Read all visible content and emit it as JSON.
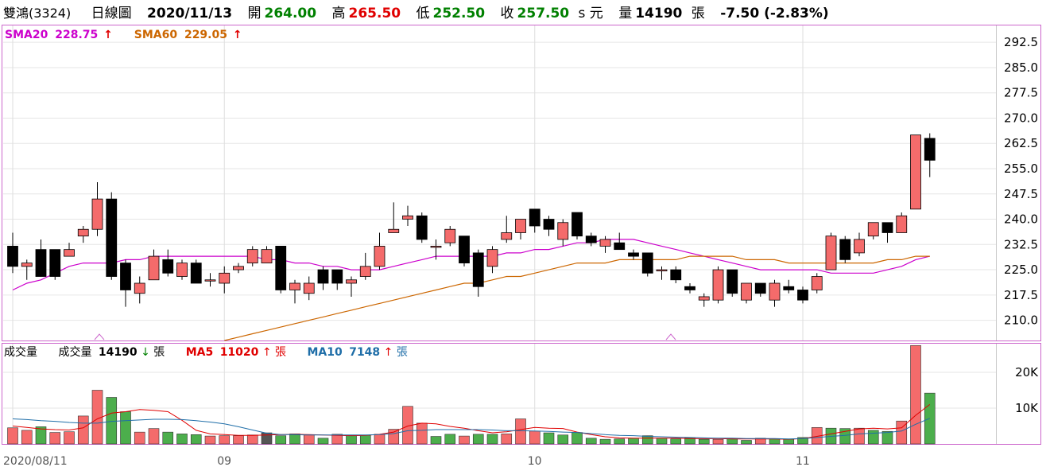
{
  "header": {
    "stock": "雙鴻(3324)",
    "period": "日線圖",
    "date": "2020/11/13",
    "open_label": "開",
    "open": "264.00",
    "high_label": "高",
    "high": "265.50",
    "low_label": "低",
    "low": "252.50",
    "close_label": "收",
    "close": "257.50",
    "unit": "s 元",
    "volume_label": "量",
    "volume": "14190",
    "volume_unit": "張",
    "change": "-7.50 (-2.83%)"
  },
  "price_legend": {
    "sma20_label": "SMA20",
    "sma20": "228.75",
    "sma60_label": "SMA60",
    "sma60": "229.05"
  },
  "volume_legend": {
    "title": "成交量",
    "vol_label": "成交量",
    "vol": "14190",
    "vol_unit": "張",
    "ma5_label": "MA5",
    "ma5": "11020",
    "ma5_unit": "張",
    "ma10_label": "MA10",
    "ma10": "7148",
    "ma10_unit": "張"
  },
  "colors": {
    "up_fill": "#f46b6b",
    "down_fill": "#000000",
    "wick": "#000000",
    "sma20": "#cc00cc",
    "sma60": "#cc6600",
    "vol_red": "#f46b6b",
    "vol_green": "#4cae4c",
    "vol_gray": "#555555",
    "ma5": "#e00000",
    "ma10": "#1f6ea8",
    "frame": "#cc66cc"
  },
  "chart_data": [
    {
      "type": "candlestick",
      "ylim": [
        204,
        297.5
      ],
      "yticks": [
        "292.5",
        "285.0",
        "277.5",
        "270.0",
        "262.5",
        "255.0",
        "247.5",
        "240.0",
        "232.5",
        "225.0",
        "217.5",
        "210.0"
      ],
      "xticks": [
        {
          "label": "2020/08/11",
          "index": 0
        },
        {
          "label": "09",
          "index": 15
        },
        {
          "label": "10",
          "index": 37
        },
        {
          "label": "11",
          "index": 56
        }
      ],
      "candles": [
        [
          232,
          226,
          236,
          224
        ],
        [
          226,
          227,
          228,
          222
        ],
        [
          231,
          223,
          234,
          223
        ],
        [
          231,
          223,
          231,
          222
        ],
        [
          229,
          231,
          233,
          229
        ],
        [
          235,
          237,
          238,
          233
        ],
        [
          237,
          246,
          251,
          235
        ],
        [
          246,
          223,
          248,
          222
        ],
        [
          227,
          219,
          228,
          214
        ],
        [
          218,
          221,
          223,
          215
        ],
        [
          222,
          229,
          231,
          222
        ],
        [
          228,
          224,
          231,
          223
        ],
        [
          223,
          227,
          228,
          222
        ],
        [
          227,
          221,
          228,
          221
        ],
        [
          222,
          222,
          224,
          220
        ],
        [
          221,
          224,
          226,
          218
        ],
        [
          225,
          226,
          227,
          224
        ],
        [
          227,
          231,
          232,
          226
        ],
        [
          227,
          231,
          232,
          227
        ],
        [
          232,
          219,
          232,
          218
        ],
        [
          219,
          221,
          222,
          215
        ],
        [
          218,
          221,
          223,
          216
        ],
        [
          225,
          221,
          226,
          219
        ],
        [
          225,
          221,
          225,
          219
        ],
        [
          221,
          222,
          223,
          217
        ],
        [
          223,
          226,
          230,
          222
        ],
        [
          226,
          232,
          236,
          225
        ],
        [
          236,
          237,
          245,
          236
        ],
        [
          240,
          241,
          244,
          238
        ],
        [
          241,
          234,
          242,
          233
        ],
        [
          232,
          232,
          234,
          228
        ],
        [
          233,
          237,
          238,
          232
        ],
        [
          235,
          227,
          235,
          226
        ],
        [
          230,
          220,
          231,
          217
        ],
        [
          226,
          231,
          232,
          224
        ],
        [
          234,
          236,
          241,
          233
        ],
        [
          236,
          240,
          240,
          234
        ],
        [
          243,
          238,
          243,
          236
        ],
        [
          240,
          237,
          241,
          235
        ],
        [
          234,
          239,
          240,
          232
        ],
        [
          242,
          235,
          242,
          234
        ],
        [
          235,
          233,
          236,
          232
        ],
        [
          232,
          234,
          235,
          230
        ],
        [
          233,
          231,
          236,
          231
        ],
        [
          230,
          229,
          231,
          228
        ],
        [
          230,
          224,
          230,
          223
        ],
        [
          225,
          225,
          226,
          222
        ],
        [
          225,
          222,
          226,
          221
        ],
        [
          220,
          219,
          221,
          218
        ],
        [
          216,
          217,
          218,
          214
        ],
        [
          216,
          225,
          226,
          215
        ],
        [
          225,
          218,
          225,
          217
        ],
        [
          216,
          221,
          221,
          215
        ],
        [
          221,
          218,
          221,
          217
        ],
        [
          216,
          221,
          222,
          214
        ],
        [
          220,
          219,
          222,
          218
        ],
        [
          219,
          216,
          220,
          215
        ],
        [
          219,
          223,
          224,
          218
        ],
        [
          225,
          235,
          236,
          225
        ],
        [
          234,
          228,
          235,
          227
        ],
        [
          230,
          234,
          236,
          229
        ],
        [
          235,
          239,
          239,
          234
        ],
        [
          239,
          236,
          239,
          233
        ],
        [
          236,
          241,
          242,
          236
        ],
        [
          243,
          265,
          265,
          243
        ],
        [
          264,
          257.5,
          265.5,
          252.5
        ]
      ],
      "series": [
        {
          "name": "SMA20",
          "values": [
            219,
            221,
            222,
            224,
            226,
            227,
            227,
            227,
            228,
            228,
            229,
            229,
            229,
            229,
            229,
            229,
            229,
            229,
            228,
            228,
            227,
            227,
            226,
            226,
            225,
            225,
            225,
            226,
            227,
            228,
            229,
            229,
            229,
            229,
            229,
            230,
            230,
            231,
            231,
            232,
            233,
            233,
            234,
            234,
            234,
            233,
            232,
            231,
            230,
            229,
            228,
            227,
            226,
            225,
            225,
            225,
            225,
            225,
            224,
            224,
            224,
            224,
            225,
            226,
            228,
            229
          ]
        },
        {
          "name": "SMA60",
          "values": [
            null,
            null,
            null,
            null,
            null,
            null,
            null,
            null,
            null,
            null,
            null,
            null,
            null,
            null,
            null,
            204,
            205,
            206,
            207,
            208,
            209,
            210,
            211,
            212,
            213,
            214,
            215,
            216,
            217,
            218,
            219,
            220,
            221,
            221,
            222,
            223,
            223,
            224,
            225,
            226,
            227,
            227,
            227,
            228,
            228,
            228,
            228,
            228,
            229,
            229,
            229,
            229,
            228,
            228,
            228,
            227,
            227,
            227,
            227,
            227,
            227,
            227,
            228,
            228,
            229,
            229
          ]
        }
      ]
    },
    {
      "type": "bar",
      "ylim": [
        0,
        28000
      ],
      "yticks": [
        "20K",
        "10K"
      ],
      "values": [
        4500,
        3800,
        4800,
        3200,
        3400,
        7800,
        15000,
        13000,
        9000,
        3300,
        4300,
        3300,
        2800,
        2600,
        2200,
        2300,
        2300,
        2500,
        3100,
        2300,
        2800,
        2500,
        1600,
        2700,
        2400,
        2400,
        2700,
        4100,
        10500,
        5800,
        2100,
        2700,
        2200,
        2700,
        2700,
        2800,
        7000,
        3600,
        3100,
        2500,
        3200,
        1600,
        1300,
        1400,
        1600,
        2300,
        1600,
        1400,
        1700,
        1300,
        1300,
        1600,
        1000,
        1600,
        1400,
        1300,
        1800,
        4600,
        4400,
        4300,
        4400,
        3800,
        3500,
        6400,
        27500,
        14190
      ],
      "colors": [
        "r",
        "r",
        "g",
        "r",
        "r",
        "r",
        "r",
        "g",
        "g",
        "r",
        "r",
        "g",
        "g",
        "g",
        "r",
        "r",
        "r",
        "r",
        "x",
        "g",
        "g",
        "r",
        "g",
        "r",
        "g",
        "g",
        "r",
        "r",
        "r",
        "r",
        "g",
        "g",
        "r",
        "g",
        "g",
        "r",
        "r",
        "r",
        "g",
        "g",
        "g",
        "g",
        "g",
        "g",
        "g",
        "g",
        "g",
        "g",
        "g",
        "g",
        "r",
        "g",
        "g",
        "r",
        "g",
        "g",
        "g",
        "r",
        "g",
        "g",
        "r",
        "g",
        "g",
        "r",
        "r",
        "g"
      ],
      "series": [
        {
          "name": "MA5",
          "values": [
            5000,
            4600,
            4200,
            4000,
            3900,
            4500,
            7000,
            8600,
            9000,
            9600,
            9400,
            9000,
            6600,
            3800,
            2800,
            2600,
            2400,
            2400,
            2500,
            2600,
            2700,
            2600,
            2500,
            2400,
            2300,
            2400,
            2700,
            3300,
            5000,
            5800,
            5600,
            4900,
            4400,
            3700,
            3100,
            3400,
            4000,
            4600,
            4400,
            4300,
            3300,
            2600,
            2000,
            1700,
            1600,
            1600,
            1600,
            1600,
            1500,
            1500,
            1500,
            1400,
            1400,
            1400,
            1400,
            1300,
            1500,
            2100,
            2800,
            3500,
            4200,
            4400,
            4200,
            4500,
            8000,
            11020
          ]
        },
        {
          "name": "MA10",
          "values": [
            7000,
            6800,
            6500,
            6300,
            6000,
            5800,
            5800,
            6300,
            6500,
            6700,
            6900,
            6900,
            6800,
            6500,
            6100,
            5600,
            4800,
            3900,
            3000,
            2600,
            2600,
            2500,
            2500,
            2500,
            2500,
            2500,
            2600,
            2900,
            3700,
            3800,
            4000,
            4000,
            4000,
            4000,
            3900,
            3700,
            3700,
            3600,
            3500,
            3300,
            3200,
            2900,
            2600,
            2400,
            2300,
            2100,
            2000,
            1900,
            1800,
            1700,
            1600,
            1600,
            1500,
            1500,
            1500,
            1400,
            1500,
            1800,
            2100,
            2400,
            2800,
            3000,
            3200,
            3600,
            5500,
            7148
          ]
        }
      ]
    }
  ]
}
